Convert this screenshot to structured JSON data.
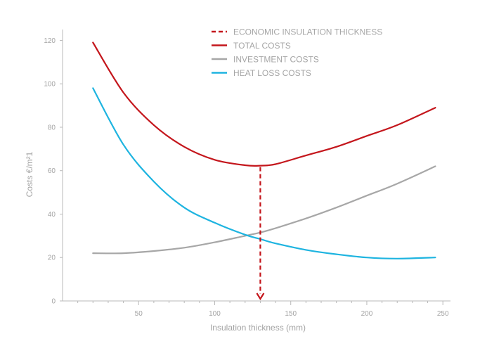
{
  "chart_data": {
    "type": "line",
    "xlabel": "Insulation thickness (mm)",
    "ylabel": "Costs €/m²1",
    "xlim": [
      0,
      255
    ],
    "ylim": [
      0,
      125
    ],
    "xticks": [
      50,
      100,
      150,
      200,
      250
    ],
    "yticks": [
      0,
      20,
      40,
      60,
      80,
      100,
      120
    ],
    "grid": false,
    "legend_position": "top-right",
    "legend": [
      {
        "label": "ECONOMIC INSULATION THICKNESS",
        "style": "dashed",
        "color": "#c4161c"
      },
      {
        "label": "TOTAL COSTS",
        "style": "solid",
        "color": "#c4161c"
      },
      {
        "label": "INVESTMENT COSTS",
        "style": "solid",
        "color": "#a7a7a7"
      },
      {
        "label": "HEAT LOSS COSTS",
        "style": "solid",
        "color": "#1eb4e0"
      }
    ],
    "x": [
      20,
      40,
      60,
      80,
      100,
      120,
      130,
      140,
      160,
      180,
      200,
      220,
      245
    ],
    "series": [
      {
        "name": "TOTAL COSTS",
        "color": "#c4161c",
        "values": [
          119,
          96,
          81,
          71,
          65,
          62.5,
          62.3,
          63,
          67,
          71,
          76,
          81,
          89
        ]
      },
      {
        "name": "INVESTMENT COSTS",
        "color": "#a7a7a7",
        "values": [
          22,
          22,
          23,
          24.5,
          27,
          30,
          31.5,
          33.5,
          38,
          43,
          48.5,
          54,
          62
        ]
      },
      {
        "name": "HEAT LOSS COSTS",
        "color": "#1eb4e0",
        "values": [
          98,
          72,
          55,
          43,
          36,
          30.5,
          28.5,
          26.5,
          23.5,
          21.5,
          20,
          19.5,
          20
        ]
      }
    ],
    "economic_thickness": {
      "x": 130,
      "y": 62.3
    }
  }
}
